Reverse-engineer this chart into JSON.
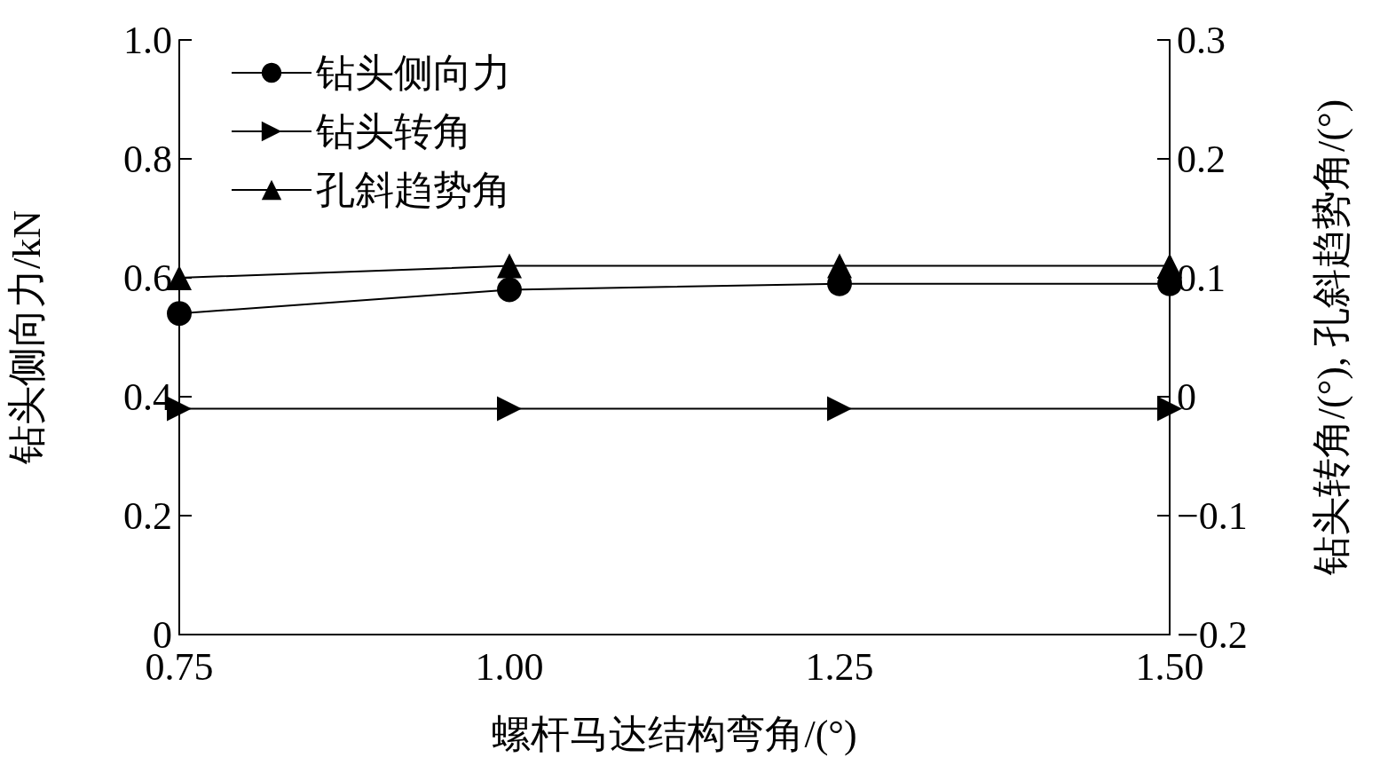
{
  "chart_data": {
    "type": "line",
    "xlabel": "螺杆马达结构弯角/(°)",
    "ylabel": "钻头侧向力/kN",
    "y2label": "钻头转角/(°), 孔斜趋势角/(°)",
    "x": [
      0.75,
      1.0,
      1.25,
      1.5
    ],
    "series": [
      {
        "name": "钻头侧向力",
        "color": "#000000",
        "marker": "circle",
        "values": [
          0.54,
          0.58,
          0.59,
          0.59
        ]
      },
      {
        "name": "钻头转角",
        "color": "#000000",
        "marker": "triangle-right",
        "axis": "y2",
        "values": [
          -0.01,
          -0.01,
          -0.01,
          -0.01
        ]
      },
      {
        "name": "孔斜趋势角",
        "color": "#000000",
        "marker": "triangle",
        "axis": "y2",
        "values": [
          0.1,
          0.11,
          0.11,
          0.11
        ]
      }
    ],
    "xlim": [
      0.75,
      1.5
    ],
    "xticks": [
      0.75,
      {
        "value": 1.0,
        "label": "1.00"
      },
      1.25,
      {
        "value": 1.5,
        "label": "1.50"
      }
    ],
    "ylim": [
      0,
      1.0
    ],
    "yticks": [
      0,
      0.2,
      0.4,
      0.6,
      0.8,
      {
        "value": 1.0,
        "label": "1.0"
      }
    ],
    "y2lim": [
      -0.2,
      0.3
    ],
    "y2ticks": [
      {
        "value": -0.2,
        "label": "−0.2"
      },
      {
        "value": -0.1,
        "label": "−0.1"
      },
      0,
      0.1,
      0.2,
      0.3
    ],
    "grid": false,
    "legend": "top left",
    "line_style": "solid"
  }
}
